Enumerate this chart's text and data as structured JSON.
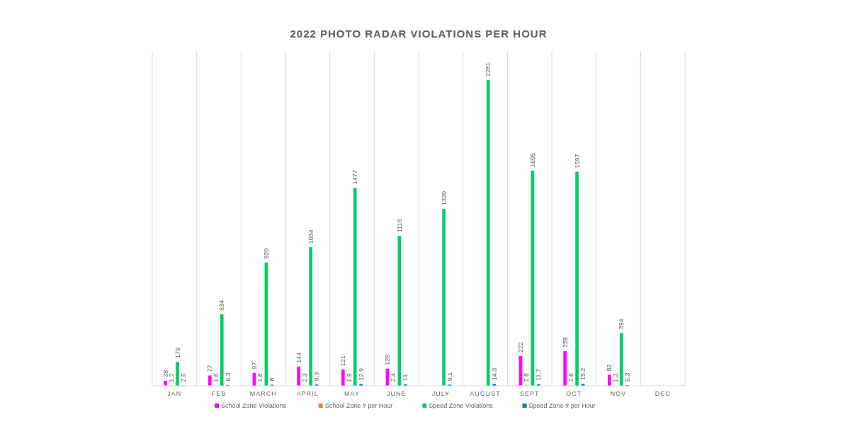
{
  "chart_data": {
    "type": "bar",
    "title": "2022 PHOTO RADAR VIOLATIONS PER HOUR",
    "categories": [
      "JAN",
      "FEB",
      "MARCH",
      "APRIL",
      "MAY",
      "JUNE",
      "JULY",
      "AUGUST",
      "SEPT",
      "OCT",
      "NOV",
      "DEC"
    ],
    "series": [
      {
        "name": "School Zone Violations",
        "color": "#ff00ff",
        "values": [
          38,
          77,
          97,
          144,
          121,
          128,
          null,
          null,
          222,
          259,
          82,
          null
        ]
      },
      {
        "name": "School Zone # per Hour",
        "color": "#ed7d31",
        "values": [
          1.2,
          1.6,
          1.8,
          2.3,
          1.9,
          2.4,
          null,
          null,
          2.8,
          2.6,
          1.3,
          null
        ]
      },
      {
        "name": "Speed Zone Violations",
        "color": "#00cc66",
        "values": [
          179,
          534,
          920,
          1034,
          1477,
          1118,
          1320,
          2281,
          1605,
          1597,
          394,
          null
        ]
      },
      {
        "name": "Speed Zone # per Hour",
        "color": "#0070c0",
        "values": [
          2.5,
          6.3,
          8,
          9.9,
          12.9,
          11,
          9.1,
          14.3,
          11.7,
          15.2,
          5.3,
          null
        ]
      }
    ],
    "data_labels": true,
    "grid": "x",
    "legend": "bottom"
  }
}
